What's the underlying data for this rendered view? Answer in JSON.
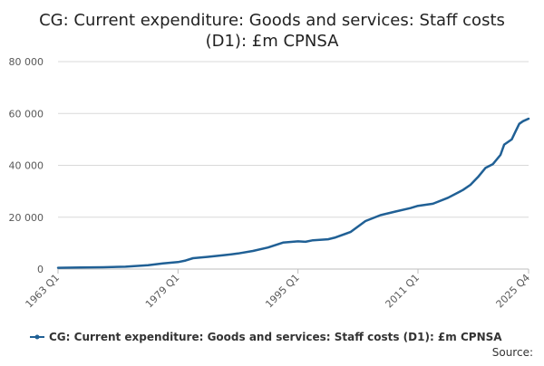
{
  "chart_data": {
    "type": "line",
    "title_lines": [
      "CG: Current expenditure: Goods and services: Staff costs",
      "(D1): £m CPNSA"
    ],
    "xlabel": "",
    "ylabel": "",
    "ylim": [
      0,
      80000
    ],
    "y_ticks": [
      {
        "value": 0,
        "label": "0"
      },
      {
        "value": 20000,
        "label": "20 000"
      },
      {
        "value": 40000,
        "label": "40 000"
      },
      {
        "value": 60000,
        "label": "60 000"
      },
      {
        "value": 80000,
        "label": "80 000"
      }
    ],
    "x_range": [
      1963,
      2025.75
    ],
    "x_ticks": [
      {
        "value": 1963,
        "label": "1963 Q1"
      },
      {
        "value": 1979,
        "label": "1979 Q1"
      },
      {
        "value": 1995,
        "label": "1995 Q1"
      },
      {
        "value": 2011,
        "label": "2011 Q1"
      },
      {
        "value": 2025.75,
        "label": "2025 Q4"
      }
    ],
    "grid": true,
    "legend_position": "bottom",
    "series": [
      {
        "name": "CG: Current expenditure: Goods and services: Staff costs (D1): £m CPNSA",
        "color": "#206095",
        "points": [
          [
            1963,
            500
          ],
          [
            1966,
            600
          ],
          [
            1969,
            700
          ],
          [
            1972,
            900
          ],
          [
            1975,
            1500
          ],
          [
            1977,
            2200
          ],
          [
            1979,
            2700
          ],
          [
            1980,
            3300
          ],
          [
            1981,
            4200
          ],
          [
            1983,
            4700
          ],
          [
            1985,
            5300
          ],
          [
            1987,
            6000
          ],
          [
            1989,
            7000
          ],
          [
            1991,
            8300
          ],
          [
            1993,
            10200
          ],
          [
            1995,
            10700
          ],
          [
            1996,
            10500
          ],
          [
            1997,
            11100
          ],
          [
            1999,
            11500
          ],
          [
            2000,
            12200
          ],
          [
            2002,
            14300
          ],
          [
            2004,
            18500
          ],
          [
            2006,
            20800
          ],
          [
            2008,
            22200
          ],
          [
            2010,
            23500
          ],
          [
            2011,
            24400
          ],
          [
            2013,
            25200
          ],
          [
            2015,
            27500
          ],
          [
            2017,
            30500
          ],
          [
            2018,
            32500
          ],
          [
            2019,
            35500
          ],
          [
            2020,
            39000
          ],
          [
            2021,
            40500
          ],
          [
            2022,
            44000
          ],
          [
            2022.5,
            48000
          ],
          [
            2023.5,
            50000
          ],
          [
            2024,
            53000
          ],
          [
            2024.5,
            56000
          ],
          [
            2025,
            57000
          ],
          [
            2025.75,
            58000
          ]
        ]
      }
    ]
  },
  "source_label": "Source:"
}
